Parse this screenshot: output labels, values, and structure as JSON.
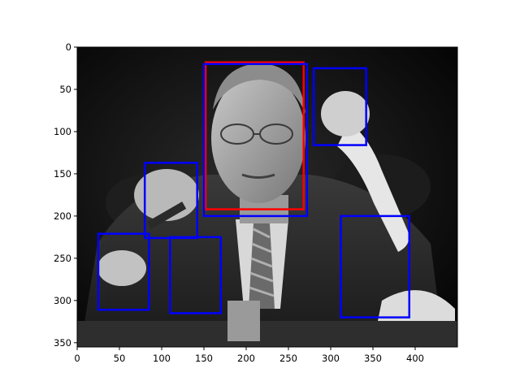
{
  "chart_data": {
    "type": "image",
    "image_description_label": "",
    "xlim": [
      0,
      450
    ],
    "ylim": [
      355,
      0
    ],
    "x_ticks": [
      0,
      50,
      100,
      150,
      200,
      250,
      300,
      350,
      400
    ],
    "y_ticks": [
      0,
      50,
      100,
      150,
      200,
      250,
      300,
      350
    ],
    "x_tick_labels": [
      "0",
      "50",
      "100",
      "150",
      "200",
      "250",
      "300",
      "350",
      "400"
    ],
    "y_tick_labels": [
      "0",
      "50",
      "100",
      "150",
      "200",
      "250",
      "300",
      "350"
    ],
    "boxes": [
      {
        "color": "#ff0000",
        "x0": 152,
        "y0": 18,
        "x1": 268,
        "y1": 192
      },
      {
        "color": "#0000ff",
        "x0": 150,
        "y0": 20,
        "x1": 272,
        "y1": 200
      },
      {
        "color": "#0000ff",
        "x0": 280,
        "y0": 25,
        "x1": 342,
        "y1": 116
      },
      {
        "color": "#0000ff",
        "x0": 80,
        "y0": 137,
        "x1": 142,
        "y1": 226
      },
      {
        "color": "#0000ff",
        "x0": 25,
        "y0": 221,
        "x1": 85,
        "y1": 311
      },
      {
        "color": "#0000ff",
        "x0": 110,
        "y0": 225,
        "x1": 170,
        "y1": 315
      },
      {
        "color": "#0000ff",
        "x0": 312,
        "y0": 200,
        "x1": 393,
        "y1": 320
      }
    ]
  }
}
